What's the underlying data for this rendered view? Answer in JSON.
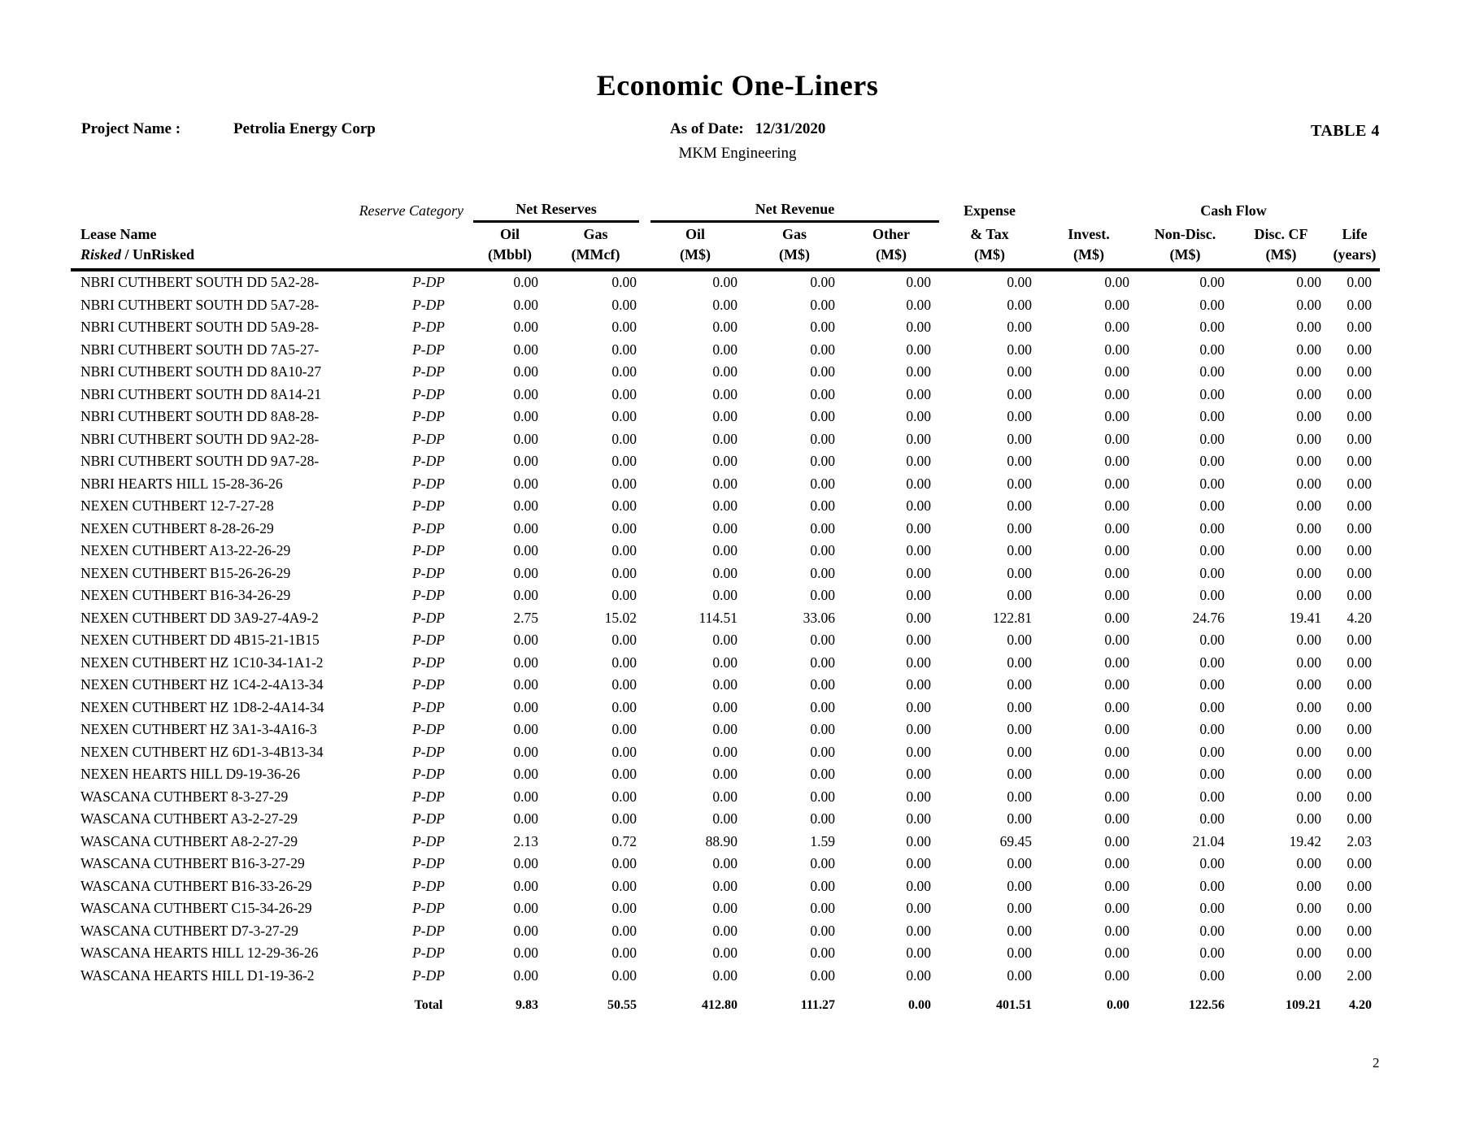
{
  "page": {
    "title": "Economic One-Liners",
    "project_label": "Project Name :",
    "project_name": "Petrolia Energy Corp",
    "as_of_label": "As of Date:",
    "as_of_date": "12/31/2020",
    "engineer": "MKM Engineering",
    "table_label": "TABLE 4",
    "page_number": "2"
  },
  "table": {
    "lease_header": "Lease Name",
    "lease_subheader_risked": "Risked",
    "lease_subheader_rest": " / UnRisked",
    "reserve_category_label": "Reserve Category",
    "groups": {
      "net_reserves": "Net Reserves",
      "net_revenue": "Net Revenue",
      "cash_flow": "Cash Flow"
    },
    "columns": [
      {
        "label": "Oil",
        "unit": "(Mbbl)"
      },
      {
        "label": "Gas",
        "unit": "(MMcf)"
      },
      {
        "label": "Oil",
        "unit": "(M$)"
      },
      {
        "label": "Gas",
        "unit": "(M$)"
      },
      {
        "label": "Other",
        "unit": "(M$)"
      },
      {
        "label": "Expense",
        "label2": "& Tax",
        "unit": "(M$)"
      },
      {
        "label": "Invest.",
        "unit": "(M$)"
      },
      {
        "label": "Non-Disc.",
        "unit": "(M$)"
      },
      {
        "label": "Disc. CF",
        "unit": "(M$)"
      },
      {
        "label": "Life",
        "unit": "(years)"
      }
    ],
    "rows": [
      {
        "lease": "NBRI CUTHBERT SOUTH DD 5A2-28-",
        "category": "P-DP",
        "values": [
          "0.00",
          "0.00",
          "0.00",
          "0.00",
          "0.00",
          "0.00",
          "0.00",
          "0.00",
          "0.00",
          "0.00"
        ]
      },
      {
        "lease": "NBRI CUTHBERT SOUTH DD 5A7-28-",
        "category": "P-DP",
        "values": [
          "0.00",
          "0.00",
          "0.00",
          "0.00",
          "0.00",
          "0.00",
          "0.00",
          "0.00",
          "0.00",
          "0.00"
        ]
      },
      {
        "lease": "NBRI CUTHBERT SOUTH DD 5A9-28-",
        "category": "P-DP",
        "values": [
          "0.00",
          "0.00",
          "0.00",
          "0.00",
          "0.00",
          "0.00",
          "0.00",
          "0.00",
          "0.00",
          "0.00"
        ]
      },
      {
        "lease": "NBRI CUTHBERT SOUTH DD 7A5-27-",
        "category": "P-DP",
        "values": [
          "0.00",
          "0.00",
          "0.00",
          "0.00",
          "0.00",
          "0.00",
          "0.00",
          "0.00",
          "0.00",
          "0.00"
        ]
      },
      {
        "lease": "NBRI CUTHBERT SOUTH DD 8A10-27",
        "category": "P-DP",
        "values": [
          "0.00",
          "0.00",
          "0.00",
          "0.00",
          "0.00",
          "0.00",
          "0.00",
          "0.00",
          "0.00",
          "0.00"
        ]
      },
      {
        "lease": "NBRI CUTHBERT SOUTH DD 8A14-21",
        "category": "P-DP",
        "values": [
          "0.00",
          "0.00",
          "0.00",
          "0.00",
          "0.00",
          "0.00",
          "0.00",
          "0.00",
          "0.00",
          "0.00"
        ]
      },
      {
        "lease": "NBRI CUTHBERT SOUTH DD 8A8-28-",
        "category": "P-DP",
        "values": [
          "0.00",
          "0.00",
          "0.00",
          "0.00",
          "0.00",
          "0.00",
          "0.00",
          "0.00",
          "0.00",
          "0.00"
        ]
      },
      {
        "lease": "NBRI CUTHBERT SOUTH DD 9A2-28-",
        "category": "P-DP",
        "values": [
          "0.00",
          "0.00",
          "0.00",
          "0.00",
          "0.00",
          "0.00",
          "0.00",
          "0.00",
          "0.00",
          "0.00"
        ]
      },
      {
        "lease": "NBRI CUTHBERT SOUTH DD 9A7-28-",
        "category": "P-DP",
        "values": [
          "0.00",
          "0.00",
          "0.00",
          "0.00",
          "0.00",
          "0.00",
          "0.00",
          "0.00",
          "0.00",
          "0.00"
        ]
      },
      {
        "lease": "NBRI HEARTS HILL 15-28-36-26",
        "category": "P-DP",
        "values": [
          "0.00",
          "0.00",
          "0.00",
          "0.00",
          "0.00",
          "0.00",
          "0.00",
          "0.00",
          "0.00",
          "0.00"
        ]
      },
      {
        "lease": "NEXEN CUTHBERT 12-7-27-28",
        "category": "P-DP",
        "values": [
          "0.00",
          "0.00",
          "0.00",
          "0.00",
          "0.00",
          "0.00",
          "0.00",
          "0.00",
          "0.00",
          "0.00"
        ]
      },
      {
        "lease": "NEXEN CUTHBERT 8-28-26-29",
        "category": "P-DP",
        "values": [
          "0.00",
          "0.00",
          "0.00",
          "0.00",
          "0.00",
          "0.00",
          "0.00",
          "0.00",
          "0.00",
          "0.00"
        ]
      },
      {
        "lease": "NEXEN CUTHBERT A13-22-26-29",
        "category": "P-DP",
        "values": [
          "0.00",
          "0.00",
          "0.00",
          "0.00",
          "0.00",
          "0.00",
          "0.00",
          "0.00",
          "0.00",
          "0.00"
        ]
      },
      {
        "lease": "NEXEN CUTHBERT B15-26-26-29",
        "category": "P-DP",
        "values": [
          "0.00",
          "0.00",
          "0.00",
          "0.00",
          "0.00",
          "0.00",
          "0.00",
          "0.00",
          "0.00",
          "0.00"
        ]
      },
      {
        "lease": "NEXEN CUTHBERT B16-34-26-29",
        "category": "P-DP",
        "values": [
          "0.00",
          "0.00",
          "0.00",
          "0.00",
          "0.00",
          "0.00",
          "0.00",
          "0.00",
          "0.00",
          "0.00"
        ]
      },
      {
        "lease": "NEXEN CUTHBERT DD 3A9-27-4A9-2",
        "category": "P-DP",
        "values": [
          "2.75",
          "15.02",
          "114.51",
          "33.06",
          "0.00",
          "122.81",
          "0.00",
          "24.76",
          "19.41",
          "4.20"
        ]
      },
      {
        "lease": "NEXEN CUTHBERT DD 4B15-21-1B15",
        "category": "P-DP",
        "values": [
          "0.00",
          "0.00",
          "0.00",
          "0.00",
          "0.00",
          "0.00",
          "0.00",
          "0.00",
          "0.00",
          "0.00"
        ]
      },
      {
        "lease": "NEXEN CUTHBERT HZ 1C10-34-1A1-2",
        "category": "P-DP",
        "values": [
          "0.00",
          "0.00",
          "0.00",
          "0.00",
          "0.00",
          "0.00",
          "0.00",
          "0.00",
          "0.00",
          "0.00"
        ]
      },
      {
        "lease": "NEXEN CUTHBERT HZ 1C4-2-4A13-34",
        "category": "P-DP",
        "values": [
          "0.00",
          "0.00",
          "0.00",
          "0.00",
          "0.00",
          "0.00",
          "0.00",
          "0.00",
          "0.00",
          "0.00"
        ]
      },
      {
        "lease": "NEXEN CUTHBERT HZ 1D8-2-4A14-34",
        "category": "P-DP",
        "values": [
          "0.00",
          "0.00",
          "0.00",
          "0.00",
          "0.00",
          "0.00",
          "0.00",
          "0.00",
          "0.00",
          "0.00"
        ]
      },
      {
        "lease": "NEXEN CUTHBERT HZ 3A1-3-4A16-3",
        "category": "P-DP",
        "values": [
          "0.00",
          "0.00",
          "0.00",
          "0.00",
          "0.00",
          "0.00",
          "0.00",
          "0.00",
          "0.00",
          "0.00"
        ]
      },
      {
        "lease": "NEXEN CUTHBERT HZ 6D1-3-4B13-34",
        "category": "P-DP",
        "values": [
          "0.00",
          "0.00",
          "0.00",
          "0.00",
          "0.00",
          "0.00",
          "0.00",
          "0.00",
          "0.00",
          "0.00"
        ]
      },
      {
        "lease": "NEXEN HEARTS HILL D9-19-36-26",
        "category": "P-DP",
        "values": [
          "0.00",
          "0.00",
          "0.00",
          "0.00",
          "0.00",
          "0.00",
          "0.00",
          "0.00",
          "0.00",
          "0.00"
        ]
      },
      {
        "lease": "WASCANA CUTHBERT 8-3-27-29",
        "category": "P-DP",
        "values": [
          "0.00",
          "0.00",
          "0.00",
          "0.00",
          "0.00",
          "0.00",
          "0.00",
          "0.00",
          "0.00",
          "0.00"
        ]
      },
      {
        "lease": "WASCANA CUTHBERT A3-2-27-29",
        "category": "P-DP",
        "values": [
          "0.00",
          "0.00",
          "0.00",
          "0.00",
          "0.00",
          "0.00",
          "0.00",
          "0.00",
          "0.00",
          "0.00"
        ]
      },
      {
        "lease": "WASCANA CUTHBERT A8-2-27-29",
        "category": "P-DP",
        "values": [
          "2.13",
          "0.72",
          "88.90",
          "1.59",
          "0.00",
          "69.45",
          "0.00",
          "21.04",
          "19.42",
          "2.03"
        ]
      },
      {
        "lease": "WASCANA CUTHBERT B16-3-27-29",
        "category": "P-DP",
        "values": [
          "0.00",
          "0.00",
          "0.00",
          "0.00",
          "0.00",
          "0.00",
          "0.00",
          "0.00",
          "0.00",
          "0.00"
        ]
      },
      {
        "lease": "WASCANA CUTHBERT B16-33-26-29",
        "category": "P-DP",
        "values": [
          "0.00",
          "0.00",
          "0.00",
          "0.00",
          "0.00",
          "0.00",
          "0.00",
          "0.00",
          "0.00",
          "0.00"
        ]
      },
      {
        "lease": "WASCANA CUTHBERT C15-34-26-29",
        "category": "P-DP",
        "values": [
          "0.00",
          "0.00",
          "0.00",
          "0.00",
          "0.00",
          "0.00",
          "0.00",
          "0.00",
          "0.00",
          "0.00"
        ]
      },
      {
        "lease": "WASCANA CUTHBERT D7-3-27-29",
        "category": "P-DP",
        "values": [
          "0.00",
          "0.00",
          "0.00",
          "0.00",
          "0.00",
          "0.00",
          "0.00",
          "0.00",
          "0.00",
          "0.00"
        ]
      },
      {
        "lease": "WASCANA HEARTS HILL 12-29-36-26",
        "category": "P-DP",
        "values": [
          "0.00",
          "0.00",
          "0.00",
          "0.00",
          "0.00",
          "0.00",
          "0.00",
          "0.00",
          "0.00",
          "0.00"
        ]
      },
      {
        "lease": "WASCANA HEARTS HILL D1-19-36-2",
        "category": "P-DP",
        "values": [
          "0.00",
          "0.00",
          "0.00",
          "0.00",
          "0.00",
          "0.00",
          "0.00",
          "0.00",
          "0.00",
          "2.00"
        ]
      }
    ],
    "total": {
      "label": "Total",
      "values": [
        "9.83",
        "50.55",
        "412.80",
        "111.27",
        "0.00",
        "401.51",
        "0.00",
        "122.56",
        "109.21",
        "4.20"
      ]
    }
  }
}
